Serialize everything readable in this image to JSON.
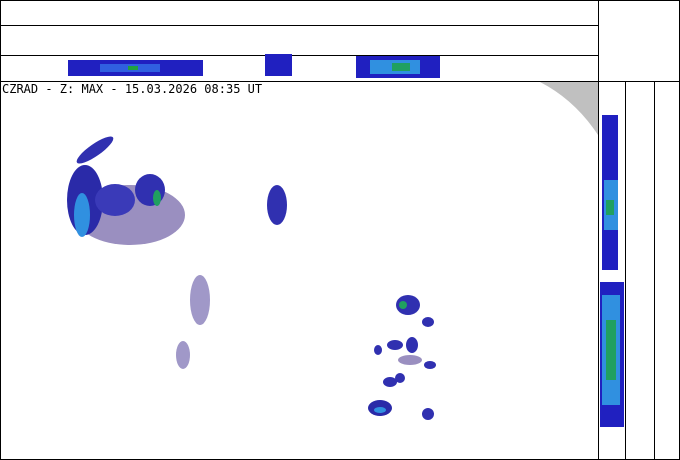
{
  "header": {
    "title": "CZRAD - Z: MAX - 15.03.2026 08:35 UT"
  }
}
